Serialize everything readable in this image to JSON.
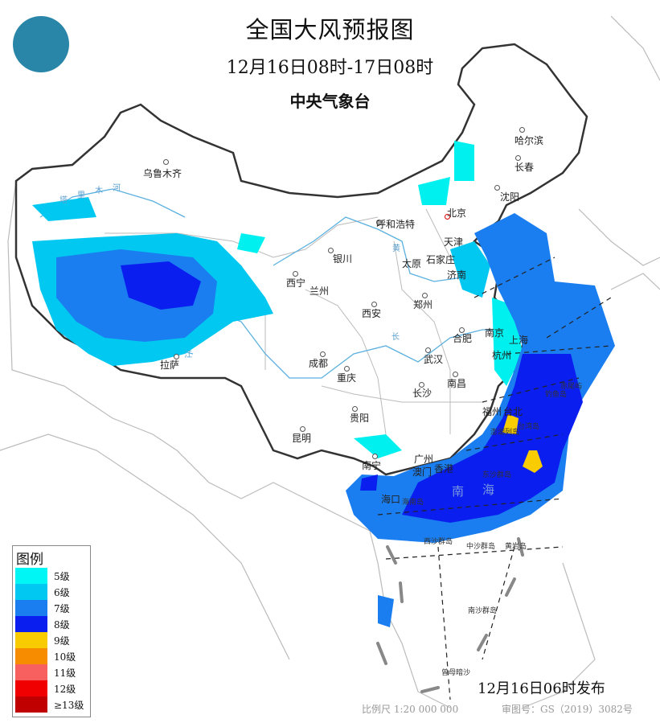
{
  "header": {
    "title": "全国大风预报图",
    "period": "12月16日08时-17日08时",
    "issuer": "中央气象台"
  },
  "logo": {
    "icon": "cma-logo-icon"
  },
  "cities": {
    "urumqi": "乌鲁木齐",
    "harbin": "哈尔滨",
    "changchun": "长春",
    "shenyang": "沈阳",
    "beijing": "北京",
    "tianjin": "天津",
    "hohhot": "呼和浩特",
    "yinchuan": "银川",
    "taiyuan": "太原",
    "shijiazhuang": "石家庄",
    "jinan": "济南",
    "xining": "西宁",
    "lanzhou": "兰州",
    "zhengzhou": "郑州",
    "xian": "西安",
    "hefei": "合肥",
    "nanjing": "南京",
    "shanghai": "上海",
    "hangzhou": "杭州",
    "wuhan": "武汉",
    "lhasa": "拉萨",
    "chengdu": "成都",
    "chongqing": "重庆",
    "nanchang": "南昌",
    "changsha": "长沙",
    "fuzhou": "福州",
    "taipei": "台北",
    "guiyang": "贵阳",
    "kunming": "昆明",
    "nanning": "南宁",
    "guangzhou": "广州",
    "macau": "澳门",
    "hongkong": "香港",
    "haikou": "海口"
  },
  "islands": {
    "taiwan": "台湾岛",
    "diaoyu": "钓鱼岛",
    "chiwei": "赤尾屿",
    "penghu": "澎湖列岛",
    "dongsha": "东沙群岛",
    "hainan": "海南岛",
    "xisha": "西沙群岛",
    "zhongsha": "中沙群岛",
    "huangyan": "黄岩岛",
    "nansha": "南沙群岛",
    "zengmu": "曾母暗沙"
  },
  "seas": {
    "nan": "南",
    "hai": "海"
  },
  "rivers": {
    "tarim": [
      "塔",
      "里",
      "木",
      "河"
    ],
    "huang": "黄",
    "chang": "长",
    "jiang": "江"
  },
  "legend": {
    "title": "图例",
    "items": [
      {
        "label": "5级",
        "color": "#00f5f5"
      },
      {
        "label": "6级",
        "color": "#00c8f0"
      },
      {
        "label": "7级",
        "color": "#1a7ef0"
      },
      {
        "label": "8级",
        "color": "#0a1ef0"
      },
      {
        "label": "9级",
        "color": "#f8cc00"
      },
      {
        "label": "10级",
        "color": "#f88c00"
      },
      {
        "label": "11级",
        "color": "#f86060"
      },
      {
        "label": "12级",
        "color": "#f00000"
      },
      {
        "label": "≥13级",
        "color": "#c00000"
      }
    ]
  },
  "footer": {
    "issued": "12月16日06时发布",
    "scale": "比例尺  1:20 000 000",
    "approval": "审图号：GS（2019）3082号"
  }
}
